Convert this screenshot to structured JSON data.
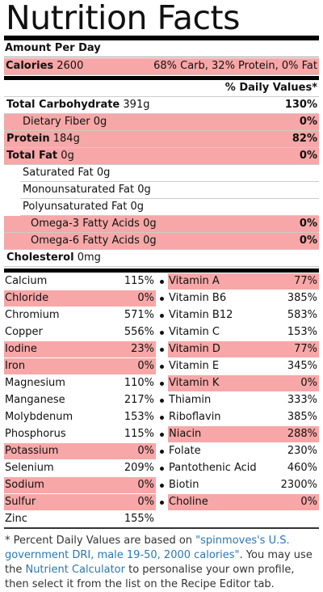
{
  "title": "Nutrition Facts",
  "amount_per": "Amount Per Day",
  "calories": {
    "label": "Calories",
    "value": "2600",
    "breakdown": "68% Carb, 32% Protein, 0% Fat",
    "highlight": true
  },
  "dv_header": "% Daily Values*",
  "nutrients": [
    {
      "label": "Total Carbohydrate",
      "amount": "391g",
      "dv": "130%",
      "level": 0,
      "highlight": false
    },
    {
      "label": "Dietary Fiber",
      "amount": "0g",
      "dv": "0%",
      "level": 1,
      "highlight": true
    },
    {
      "label": "Protein",
      "amount": "184g",
      "dv": "82%",
      "level": 0,
      "highlight": true
    },
    {
      "label": "Total Fat",
      "amount": "0g",
      "dv": "0%",
      "level": 0,
      "highlight": true
    },
    {
      "label": "Saturated Fat",
      "amount": "0g",
      "level": 1,
      "highlight": false
    },
    {
      "label": "Monounsaturated Fat",
      "amount": "0g",
      "level": 1,
      "highlight": false
    },
    {
      "label": "Polyunsaturated Fat",
      "amount": "0g",
      "level": 1,
      "highlight": false
    },
    {
      "label": "Omega-3 Fatty Acids",
      "amount": "0g",
      "dv": "0%",
      "level": 2,
      "highlight": true
    },
    {
      "label": "Omega-6 Fatty Acids",
      "amount": "0g",
      "dv": "0%",
      "level": 2,
      "highlight": true
    },
    {
      "label": "Cholesterol",
      "amount": "0mg",
      "level": 0,
      "highlight": false
    }
  ],
  "minerals": [
    {
      "name": "Calcium",
      "dv": "115%",
      "highlight": false
    },
    {
      "name": "Chloride",
      "dv": "0%",
      "highlight": true
    },
    {
      "name": "Chromium",
      "dv": "571%",
      "highlight": false
    },
    {
      "name": "Copper",
      "dv": "556%",
      "highlight": false
    },
    {
      "name": "Iodine",
      "dv": "23%",
      "highlight": true
    },
    {
      "name": "Iron",
      "dv": "0%",
      "highlight": true
    },
    {
      "name": "Magnesium",
      "dv": "110%",
      "highlight": false
    },
    {
      "name": "Manganese",
      "dv": "217%",
      "highlight": false
    },
    {
      "name": "Molybdenum",
      "dv": "153%",
      "highlight": false
    },
    {
      "name": "Phosphorus",
      "dv": "115%",
      "highlight": false
    },
    {
      "name": "Potassium",
      "dv": "0%",
      "highlight": true
    },
    {
      "name": "Selenium",
      "dv": "209%",
      "highlight": false
    },
    {
      "name": "Sodium",
      "dv": "0%",
      "highlight": true
    },
    {
      "name": "Sulfur",
      "dv": "0%",
      "highlight": true
    },
    {
      "name": "Zinc",
      "dv": "155%",
      "highlight": false
    }
  ],
  "vitamins": [
    {
      "name": "Vitamin A",
      "dv": "77%",
      "highlight": true
    },
    {
      "name": "Vitamin B6",
      "dv": "385%",
      "highlight": false
    },
    {
      "name": "Vitamin B12",
      "dv": "583%",
      "highlight": false
    },
    {
      "name": "Vitamin C",
      "dv": "153%",
      "highlight": false
    },
    {
      "name": "Vitamin D",
      "dv": "77%",
      "highlight": true
    },
    {
      "name": "Vitamin E",
      "dv": "345%",
      "highlight": false
    },
    {
      "name": "Vitamin K",
      "dv": "0%",
      "highlight": true
    },
    {
      "name": "Thiamin",
      "dv": "333%",
      "highlight": false
    },
    {
      "name": "Riboflavin",
      "dv": "385%",
      "highlight": false
    },
    {
      "name": "Niacin",
      "dv": "288%",
      "highlight": true
    },
    {
      "name": "Folate",
      "dv": "230%",
      "highlight": false
    },
    {
      "name": "Pantothenic Acid",
      "dv": "460%",
      "highlight": false
    },
    {
      "name": "Biotin",
      "dv": "2300%",
      "highlight": false
    },
    {
      "name": "Choline",
      "dv": "0%",
      "highlight": true
    }
  ],
  "footnote": [
    {
      "text": "* Percent Daily Values are based on "
    },
    {
      "text": "\"spinmoves's U.S. government DRI, male 19-50, 2000 calories\"",
      "link": true
    },
    {
      "text": ". You may use the "
    },
    {
      "text": "Nutrient Calculator",
      "link": true
    },
    {
      "text": " to personalise your own profile, then select it from the list on the Recipe Editor tab."
    }
  ]
}
